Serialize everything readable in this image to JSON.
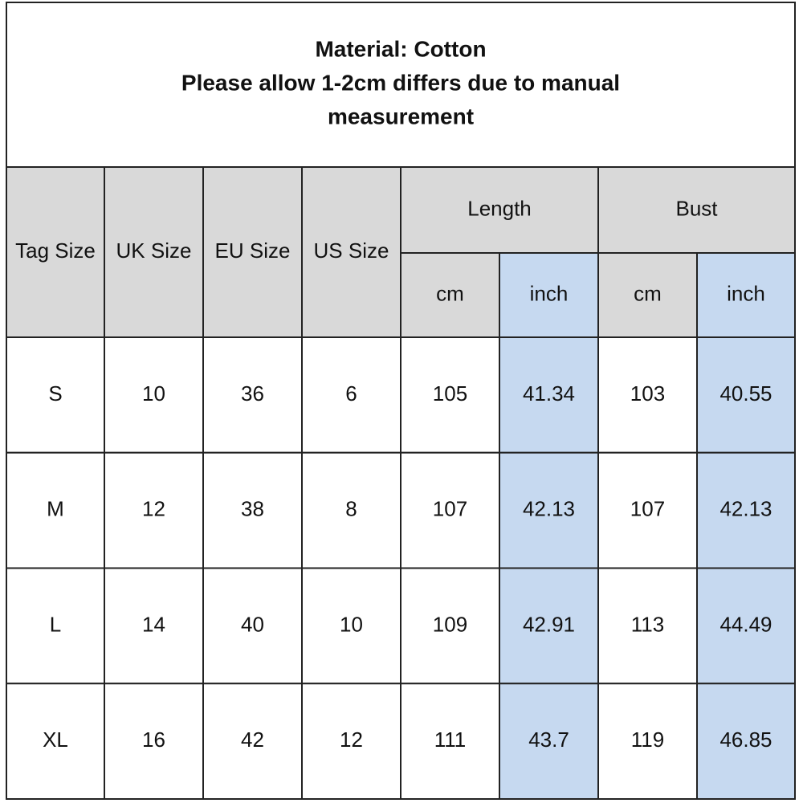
{
  "header": {
    "title_lines": [
      "Material: Cotton",
      "Please allow 1-2cm differs due to manual",
      "measurement"
    ]
  },
  "table": {
    "columns": [
      "Tag Size",
      "UK Size",
      "EU Size",
      "US Size"
    ],
    "groups": [
      {
        "name": "Length",
        "sub": [
          "cm",
          "inch"
        ]
      },
      {
        "name": "Bust",
        "sub": [
          "cm",
          "inch"
        ]
      }
    ],
    "rows": [
      [
        "S",
        "10",
        "36",
        "6",
        "105",
        "41.34",
        "103",
        "40.55"
      ],
      [
        "M",
        "12",
        "38",
        "8",
        "107",
        "42.13",
        "107",
        "42.13"
      ],
      [
        "L",
        "14",
        "40",
        "10",
        "109",
        "42.91",
        "113",
        "44.49"
      ],
      [
        "XL",
        "16",
        "42",
        "12",
        "111",
        "43.7",
        "119",
        "46.85"
      ]
    ]
  }
}
